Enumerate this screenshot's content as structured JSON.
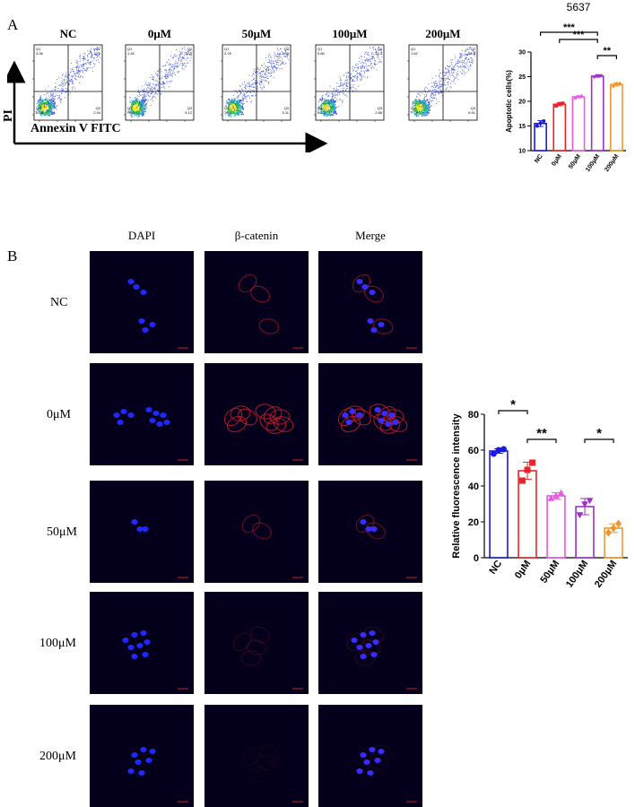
{
  "panel_a": {
    "letter": "A",
    "flow_labels": [
      "NC",
      "0μM",
      "50μM",
      "100μM",
      "200μM"
    ],
    "quadrants": [
      {
        "q1": "3.06",
        "q2": "12.6",
        "q3": "2.44",
        "q4": "81.9"
      },
      {
        "q1": "1.45",
        "q2": "14.5",
        "q3": "5.12",
        "q4": "79.0"
      },
      {
        "q1": "2.78",
        "q2": "17.8",
        "q3": "3.11",
        "q4": "76.3"
      },
      {
        "q1": "5.80",
        "q2": "22.3",
        "q3": "2.86",
        "q4": "69.0"
      },
      {
        "q1": "1.62",
        "q2": "13.6",
        "q3": "6.91",
        "q4": "77.9"
      }
    ],
    "quadrant_names": [
      "Q1",
      "Q2",
      "Q3",
      "Q4"
    ],
    "x_axis_label": "Annexin V FITC",
    "y_axis_label": "PI",
    "tick_labels": [
      "10^1",
      "10^2",
      "10^3",
      "10^4",
      "10^5"
    ]
  },
  "panel_b": {
    "letter": "B",
    "columns": [
      "DAPI",
      "β-catenin",
      "Merge"
    ],
    "rows": [
      "NC",
      "0μM",
      "50μM",
      "100μM",
      "200μM"
    ]
  },
  "chart_data": [
    {
      "type": "bar",
      "title": "5637",
      "ylabel": "Apoptotic cells(%)",
      "categories": [
        "NC",
        "0μM",
        "50μM",
        "100μM",
        "200μM"
      ],
      "values": [
        15.5,
        19.4,
        20.9,
        25.1,
        23.4
      ],
      "points": [
        [
          15.0,
          15.6,
          16.0
        ],
        [
          19.1,
          19.5,
          19.6
        ],
        [
          20.7,
          21.0,
          21.1
        ],
        [
          24.9,
          25.2,
          25.2
        ],
        [
          23.1,
          23.5,
          23.6
        ]
      ],
      "errors": [
        0.6,
        0.3,
        0.2,
        0.2,
        0.3
      ],
      "ylim": [
        10,
        30
      ],
      "yticks": [
        10,
        15,
        20,
        25,
        30
      ],
      "colors": [
        "#1a1adb",
        "#e8242a",
        "#e85ae0",
        "#a12fc7",
        "#f0962e"
      ],
      "significance": [
        {
          "from": 0,
          "to": 3,
          "label": "***"
        },
        {
          "from": 1,
          "to": 3,
          "label": "***"
        },
        {
          "from": 3,
          "to": 4,
          "label": "**"
        }
      ]
    },
    {
      "type": "bar",
      "ylabel": "Relative fluorescence intensity",
      "categories": [
        "NC",
        "0μM",
        "50μM",
        "100μM",
        "200μM"
      ],
      "values": [
        59.5,
        48.5,
        34.5,
        28.5,
        16.5
      ],
      "points": [
        [
          58.0,
          60.0,
          60.5
        ],
        [
          43.0,
          49.0,
          53.0
        ],
        [
          33.0,
          34.5,
          36.0
        ],
        [
          24.0,
          30.0,
          32.0
        ],
        [
          14.0,
          16.5,
          19.0
        ]
      ],
      "errors": [
        1.3,
        4.8,
        1.8,
        4.5,
        2.4
      ],
      "ylim": [
        0,
        80
      ],
      "yticks": [
        0,
        20,
        40,
        60,
        80
      ],
      "colors": [
        "#1a1adb",
        "#e8242a",
        "#e85ae0",
        "#a12fc7",
        "#f0962e"
      ],
      "significance": [
        {
          "from": 0,
          "to": 1,
          "label": "*"
        },
        {
          "from": 1,
          "to": 2,
          "label": "**"
        },
        {
          "from": 3,
          "to": 4,
          "label": "*"
        }
      ]
    }
  ]
}
